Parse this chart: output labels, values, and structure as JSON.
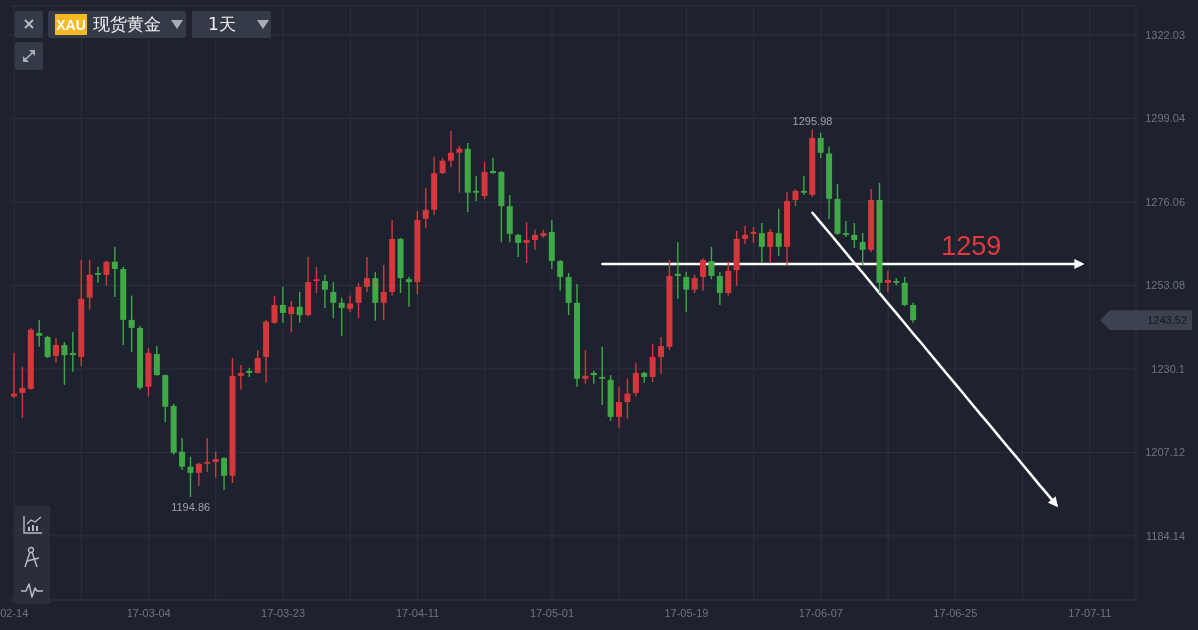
{
  "chart_data": {
    "type": "candlestick",
    "title": "现货黄金",
    "subtitle": "1天",
    "annotations": [
      "XAU",
      {
        "text": "1295.98",
        "y": 1295.98
      },
      {
        "text": "1194.86",
        "y": 1194.86
      },
      {
        "text": "1259",
        "y": 1259
      },
      "1243.52"
    ],
    "categories": [
      "02-14",
      null,
      null,
      null,
      null,
      null,
      null,
      null,
      null,
      null,
      null,
      null,
      null,
      null,
      null,
      null,
      "17-03-04",
      null,
      null,
      null,
      null,
      null,
      null,
      null,
      null,
      null,
      null,
      null,
      null,
      null,
      null,
      null,
      "17-03-23",
      null,
      null,
      null,
      null,
      null,
      null,
      null,
      null,
      null,
      null,
      null,
      null,
      null,
      null,
      null,
      "17-04-11",
      null,
      null,
      null,
      null,
      null,
      null,
      null,
      null,
      null,
      null,
      null,
      null,
      null,
      null,
      null,
      "17-05-01",
      null,
      null,
      null,
      null,
      null,
      null,
      null,
      null,
      null,
      null,
      null,
      null,
      null,
      null,
      null,
      "17-05-19",
      null,
      null,
      null,
      null,
      null,
      null,
      null,
      null,
      null,
      null,
      null,
      null,
      null,
      null,
      null,
      "17-06-07",
      null,
      null,
      null,
      null,
      null,
      null,
      null,
      null,
      null,
      null,
      null,
      null,
      null,
      null,
      null,
      "17-06-25",
      null,
      null,
      null,
      null,
      null,
      null,
      null,
      null,
      null,
      null,
      null,
      null,
      null,
      null,
      null,
      "17-07-11",
      null,
      null,
      null,
      null,
      null
    ],
    "ohlc": [
      [
        1222.5,
        1234.5,
        1222.2,
        1223.3
      ],
      [
        1223.5,
        1230.7,
        1216.6,
        1224.9
      ],
      [
        1224.6,
        1241.4,
        1224.4,
        1240.9
      ],
      [
        1240.0,
        1243.6,
        1236.2,
        1239.2
      ],
      [
        1238.9,
        1239.2,
        1233.1,
        1233.4
      ],
      [
        1233.7,
        1238.6,
        1231.8,
        1236.7
      ],
      [
        1236.7,
        1237.5,
        1225.7,
        1233.9
      ],
      [
        1234.5,
        1240.3,
        1229.3,
        1233.9
      ],
      [
        1233.4,
        1260.1,
        1230.9,
        1249.4
      ],
      [
        1249.7,
        1260.1,
        1246.4,
        1256.0
      ],
      [
        1256.5,
        1258.2,
        1253.8,
        1256.0
      ],
      [
        1256.0,
        1259.9,
        1253.0,
        1259.6
      ],
      [
        1259.6,
        1263.7,
        1249.9,
        1257.6
      ],
      [
        1257.6,
        1258.2,
        1236.7,
        1243.6
      ],
      [
        1243.6,
        1250.3,
        1234.8,
        1241.4
      ],
      [
        1241.4,
        1241.9,
        1224.4,
        1224.9
      ],
      [
        1225.2,
        1235.9,
        1222.5,
        1234.5
      ],
      [
        1234.2,
        1236.4,
        1228.2,
        1228.4
      ],
      [
        1228.4,
        1228.6,
        1215.5,
        1219.7
      ],
      [
        1219.9,
        1220.5,
        1206.5,
        1207.0
      ],
      [
        1207.3,
        1211.1,
        1202.3,
        1203.2
      ],
      [
        1203.2,
        1205.9,
        1194.86,
        1201.5
      ],
      [
        1201.5,
        1204.3,
        1197.9,
        1204.0
      ],
      [
        1204.0,
        1211.1,
        1201.8,
        1204.5
      ],
      [
        1204.5,
        1207.3,
        1200.1,
        1205.3
      ],
      [
        1205.6,
        1205.8,
        1196.8,
        1200.7
      ],
      [
        1200.7,
        1233.1,
        1198.7,
        1228.2
      ],
      [
        1228.2,
        1231.2,
        1224.4,
        1229.0
      ],
      [
        1229.6,
        1230.4,
        1227.9,
        1229.0
      ],
      [
        1229.0,
        1235.3,
        1228.8,
        1233.1
      ],
      [
        1233.4,
        1243.6,
        1226.3,
        1243.1
      ],
      [
        1242.8,
        1250.2,
        1242.5,
        1247.7
      ],
      [
        1247.7,
        1252.7,
        1242.8,
        1245.5
      ],
      [
        1245.2,
        1248.8,
        1240.3,
        1247.2
      ],
      [
        1247.2,
        1251.3,
        1242.8,
        1244.9
      ],
      [
        1244.9,
        1260.9,
        1244.6,
        1254.0
      ],
      [
        1254.3,
        1258.2,
        1251.0,
        1254.8
      ],
      [
        1254.3,
        1256.0,
        1246.9,
        1251.9
      ],
      [
        1251.3,
        1254.0,
        1244.1,
        1248.3
      ],
      [
        1248.3,
        1249.7,
        1239.2,
        1246.9
      ],
      [
        1246.7,
        1250.3,
        1245.8,
        1248.1
      ],
      [
        1248.3,
        1253.8,
        1244.1,
        1252.7
      ],
      [
        1252.7,
        1260.9,
        1251.3,
        1255.1
      ],
      [
        1255.1,
        1256.8,
        1243.4,
        1248.3
      ],
      [
        1248.3,
        1258.7,
        1243.6,
        1251.3
      ],
      [
        1251.3,
        1271.1,
        1250.3,
        1265.9
      ],
      [
        1265.9,
        1266.2,
        1251.0,
        1255.1
      ],
      [
        1254.8,
        1255.4,
        1247.2,
        1254.0
      ],
      [
        1254.0,
        1273.6,
        1250.7,
        1271.1
      ],
      [
        1271.4,
        1279.9,
        1268.9,
        1273.9
      ],
      [
        1273.9,
        1288.5,
        1272.5,
        1284.0
      ],
      [
        1284.0,
        1288.2,
        1283.7,
        1287.4
      ],
      [
        1287.4,
        1295.6,
        1285.7,
        1289.6
      ],
      [
        1289.6,
        1291.5,
        1278.6,
        1290.7
      ],
      [
        1290.7,
        1292.3,
        1273.3,
        1278.6
      ],
      [
        1279.1,
        1283.2,
        1276.3,
        1278.6
      ],
      [
        1277.7,
        1287.1,
        1276.9,
        1284.3
      ],
      [
        1284.6,
        1288.2,
        1283.8,
        1284.0
      ],
      [
        1284.3,
        1284.6,
        1265.0,
        1274.9
      ],
      [
        1274.9,
        1278.0,
        1265.0,
        1267.3
      ],
      [
        1267.0,
        1267.3,
        1260.9,
        1264.8
      ],
      [
        1264.8,
        1270.5,
        1259.3,
        1265.6
      ],
      [
        1265.6,
        1268.4,
        1262.9,
        1267.0
      ],
      [
        1266.7,
        1268.4,
        1266.2,
        1267.5
      ],
      [
        1267.8,
        1271.1,
        1257.6,
        1259.8
      ],
      [
        1259.8,
        1260.1,
        1251.6,
        1255.4
      ],
      [
        1255.4,
        1256.5,
        1244.9,
        1248.3
      ],
      [
        1248.3,
        1253.5,
        1225.2,
        1227.4
      ],
      [
        1227.4,
        1235.3,
        1226.0,
        1228.2
      ],
      [
        1229.0,
        1229.6,
        1226.0,
        1228.4
      ],
      [
        1227.9,
        1236.2,
        1220.2,
        1227.4
      ],
      [
        1227.1,
        1228.4,
        1215.8,
        1216.9
      ],
      [
        1216.9,
        1225.2,
        1213.9,
        1221.0
      ],
      [
        1221.0,
        1227.4,
        1216.4,
        1223.3
      ],
      [
        1223.5,
        1231.8,
        1222.5,
        1229.0
      ],
      [
        1229.0,
        1229.3,
        1226.3,
        1227.9
      ],
      [
        1227.9,
        1236.9,
        1226.5,
        1233.4
      ],
      [
        1233.4,
        1238.9,
        1228.7,
        1236.4
      ],
      [
        1236.2,
        1260.1,
        1235.3,
        1255.7
      ],
      [
        1256.3,
        1265.0,
        1249.4,
        1255.7
      ],
      [
        1255.4,
        1256.8,
        1245.8,
        1251.9
      ],
      [
        1251.9,
        1256.0,
        1251.0,
        1255.1
      ],
      [
        1255.4,
        1260.6,
        1251.6,
        1260.1
      ],
      [
        1259.8,
        1263.7,
        1254.8,
        1255.7
      ],
      [
        1255.7,
        1256.8,
        1247.7,
        1251.0
      ],
      [
        1251.0,
        1259.6,
        1250.3,
        1257.1
      ],
      [
        1257.3,
        1268.1,
        1253.0,
        1265.9
      ],
      [
        1265.9,
        1269.5,
        1264.5,
        1267.0
      ],
      [
        1267.3,
        1269.2,
        1264.8,
        1267.8
      ],
      [
        1267.5,
        1270.3,
        1259.3,
        1263.7
      ],
      [
        1263.7,
        1268.6,
        1259.3,
        1267.8
      ],
      [
        1267.5,
        1274.2,
        1261.2,
        1263.7
      ],
      [
        1263.7,
        1278.8,
        1258.7,
        1276.3
      ],
      [
        1276.6,
        1279.6,
        1274.9,
        1279.1
      ],
      [
        1279.1,
        1283.2,
        1278.0,
        1278.6
      ],
      [
        1278.0,
        1295.98,
        1277.4,
        1293.7
      ],
      [
        1293.7,
        1295.1,
        1288.2,
        1289.6
      ],
      [
        1289.4,
        1291.3,
        1271.4,
        1276.9
      ],
      [
        1276.9,
        1281.0,
        1267.0,
        1267.3
      ],
      [
        1267.5,
        1270.8,
        1266.4,
        1267.0
      ],
      [
        1267.0,
        1270.3,
        1263.4,
        1265.6
      ],
      [
        1265.0,
        1267.5,
        1258.7,
        1262.9
      ],
      [
        1262.9,
        1279.6,
        1262.3,
        1276.6
      ],
      [
        1276.6,
        1281.3,
        1251.0,
        1253.8
      ],
      [
        1253.8,
        1257.1,
        1251.3,
        1254.6
      ],
      [
        1254.3,
        1255.1,
        1253.2,
        1253.8
      ],
      [
        1253.8,
        1255.4,
        1247.4,
        1247.7
      ],
      [
        1247.7,
        1248.3,
        1242.8,
        1243.52
      ],
      null,
      null,
      null,
      null,
      null,
      null,
      null,
      null,
      null,
      null,
      null,
      null,
      null,
      null,
      null,
      null,
      null,
      null,
      null,
      null,
      null,
      null,
      null,
      null,
      null,
      null
    ],
    "colors": [
      "#d6373c",
      "#d6373c",
      "#d6373c",
      "#3ea946",
      "#3ea946",
      "#d6373c",
      "#3ea946",
      "#3ea946",
      "#d6373c",
      "#d6373c",
      "#3ea946",
      "#d6373c",
      "#3ea946",
      "#3ea946",
      "#3ea946",
      "#3ea946",
      "#d6373c",
      "#3ea946",
      "#3ea946",
      "#3ea946",
      "#3ea946",
      "#3ea946",
      "#d6373c",
      "#d6373c",
      "#d6373c",
      "#3ea946",
      "#d6373c",
      "#d6373c",
      "#3ea946",
      "#d6373c",
      "#d6373c",
      "#d6373c",
      "#3ea946",
      "#d6373c",
      "#3ea946",
      "#d6373c",
      "#d6373c",
      "#3ea946",
      "#3ea946",
      "#3ea946",
      "#d6373c",
      "#d6373c",
      "#d6373c",
      "#3ea946",
      "#d6373c",
      "#d6373c",
      "#3ea946",
      "#3ea946",
      "#d6373c",
      "#d6373c",
      "#d6373c",
      "#d6373c",
      "#d6373c",
      "#d6373c",
      "#3ea946",
      "#3ea946",
      "#d6373c",
      "#3ea946",
      "#3ea946",
      "#3ea946",
      "#3ea946",
      "#d6373c",
      "#d6373c",
      "#d6373c",
      "#3ea946",
      "#3ea946",
      "#3ea946",
      "#3ea946",
      "#d6373c",
      "#3ea946",
      "#3ea946",
      "#3ea946",
      "#d6373c",
      "#d6373c",
      "#d6373c",
      "#3ea946",
      "#d6373c",
      "#d6373c",
      "#d6373c",
      "#3ea946",
      "#3ea946",
      "#d6373c",
      "#d6373c",
      "#3ea946",
      "#3ea946",
      "#d6373c",
      "#d6373c",
      "#d6373c",
      "#d6373c",
      "#3ea946",
      "#d6373c",
      "#3ea946",
      "#d6373c",
      "#d6373c",
      "#3ea946",
      "#d6373c",
      "#3ea946",
      "#3ea946",
      "#3ea946",
      "#3ea946",
      "#3ea946",
      "#3ea946",
      "#d6373c",
      "#3ea946",
      "#d6373c",
      "#3ea946",
      "#3ea946",
      "#3ea946",
      null,
      null,
      null,
      null,
      null,
      null,
      null,
      null,
      null,
      null,
      null,
      null,
      null,
      null,
      null,
      null,
      null,
      null,
      null,
      null,
      null,
      null,
      null,
      null,
      null,
      null
    ],
    "ylim": [
      1166.5,
      1330.0
    ],
    "yticks": [
      1184.14,
      1207.12,
      1230.1,
      1253.08,
      1276.06,
      1299.04,
      1322.03
    ],
    "grid": true,
    "series": [
      {
        "type": "line",
        "color": "#ffffff",
        "values": [
          null,
          null,
          null,
          null,
          null,
          null,
          null,
          null,
          null,
          null,
          null,
          null,
          null,
          null,
          null,
          null,
          null,
          null,
          null,
          null,
          null,
          null,
          null,
          null,
          null,
          null,
          null,
          null,
          null,
          null,
          null,
          null,
          null,
          null,
          null,
          null,
          null,
          null,
          null,
          null,
          null,
          null,
          null,
          null,
          null,
          null,
          null,
          null,
          null,
          null,
          null,
          null,
          null,
          null,
          null,
          null,
          null,
          null,
          null,
          null,
          null,
          null,
          null,
          null,
          null,
          null,
          null,
          null,
          null,
          null,
          1259,
          1259,
          1259,
          1259,
          1259,
          1259,
          1259,
          1259,
          1259,
          1259,
          1259,
          1259,
          1259,
          1259,
          1259,
          1259,
          1259,
          1259,
          1259,
          1259,
          1259,
          1259,
          1259,
          1259,
          1259,
          1259,
          1259,
          1259,
          1259,
          1259,
          1259,
          1259,
          1259,
          1259,
          1259,
          1259,
          1259,
          1259,
          1259,
          1259,
          1259,
          1259,
          1259,
          1259,
          1259,
          1259,
          1259,
          1259,
          1259,
          1259,
          1259,
          1259,
          1259,
          1259,
          1259,
          1259,
          1259,
          1259,
          null,
          null,
          null,
          null,
          null,
          null
        ]
      },
      {
        "type": "line",
        "color": "#ffffff",
        "values": [
          null,
          null,
          null,
          null,
          null,
          null,
          null,
          null,
          null,
          null,
          null,
          null,
          null,
          null,
          null,
          null,
          null,
          null,
          null,
          null,
          null,
          null,
          null,
          null,
          null,
          null,
          null,
          null,
          null,
          null,
          null,
          null,
          null,
          null,
          null,
          null,
          null,
          null,
          null,
          null,
          null,
          null,
          null,
          null,
          null,
          null,
          null,
          null,
          null,
          null,
          null,
          null,
          null,
          null,
          null,
          null,
          null,
          null,
          null,
          null,
          null,
          null,
          null,
          null,
          null,
          null,
          null,
          null,
          null,
          null,
          null,
          null,
          null,
          null,
          null,
          null,
          null,
          null,
          null,
          null,
          null,
          null,
          null,
          null,
          null,
          null,
          null,
          null,
          null,
          null,
          null,
          null,
          null,
          null,
          null,
          1273.1,
          1270.3,
          1267.6,
          1264.8,
          1262.0,
          1259.2,
          1256.5,
          1253.7,
          1250.9,
          1248.1,
          1245.4,
          1242.6,
          1239.8,
          1237.1,
          1234.3,
          1231.5,
          1228.7,
          1226.0,
          1223.2,
          1220.4,
          1217.6,
          1214.9,
          1212.1,
          1209.3,
          1206.6,
          1203.8,
          1201.0,
          1198.2,
          1195.5,
          1192.7,
          null,
          null,
          null,
          null,
          null,
          null,
          null,
          null,
          null
        ]
      }
    ]
  }
}
